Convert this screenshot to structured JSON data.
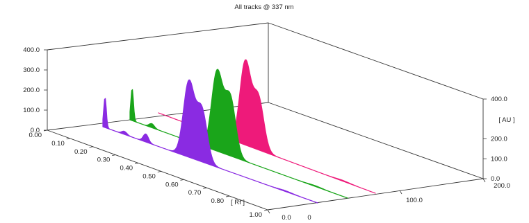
{
  "chart_data": {
    "type": "area",
    "title": "All tracks @ 337 nm",
    "x_axis": {
      "label": "[ Rf ]",
      "ticks": [
        "0.00",
        "0.10",
        "0.20",
        "0.30",
        "0.40",
        "0.50",
        "0.60",
        "0.70",
        "0.80",
        "1.00"
      ],
      "range": [
        0,
        1
      ]
    },
    "y_axis": {
      "label": "[ AU ]",
      "ticks_left": [
        "0.0",
        "100.0",
        "200.0",
        "300.0",
        "400.0"
      ],
      "ticks_right": [
        "0.0",
        "100.0",
        "200.0",
        "400.0"
      ],
      "range": [
        0,
        400
      ]
    },
    "z_axis": {
      "label": "",
      "ticks": [
        "0.0",
        "0",
        "100.0",
        "200.0"
      ],
      "range": [
        0,
        200
      ]
    },
    "grid": false,
    "series": [
      {
        "color": "#8a2be2",
        "peaks": [
          {
            "rf": 0.01,
            "au": 150
          },
          {
            "rf": 0.1,
            "au": 15
          },
          {
            "rf": 0.2,
            "au": 40
          },
          {
            "rf": 0.4,
            "au": 370
          },
          {
            "rf": 0.46,
            "au": 260
          }
        ]
      },
      {
        "color": "#1aa51a",
        "peaks": [
          {
            "rf": 0.01,
            "au": 160
          },
          {
            "rf": 0.1,
            "au": 20
          },
          {
            "rf": 0.4,
            "au": 390
          },
          {
            "rf": 0.46,
            "au": 290
          }
        ]
      },
      {
        "color": "#ee1a7a",
        "peaks": [
          {
            "rf": 0.4,
            "au": 410
          },
          {
            "rf": 0.46,
            "au": 260
          }
        ]
      }
    ]
  }
}
